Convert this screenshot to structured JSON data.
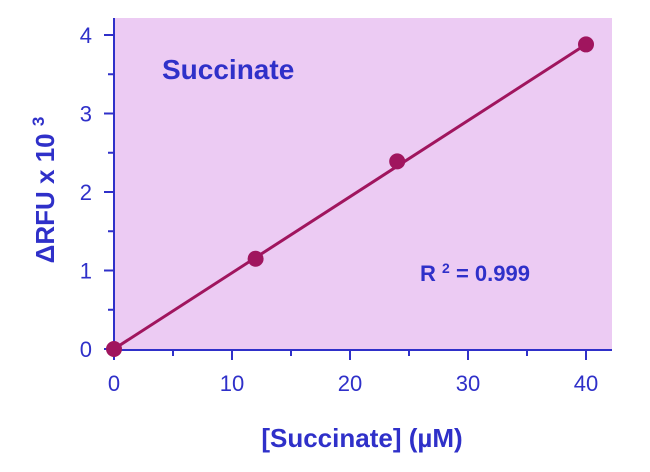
{
  "chart_data": {
    "type": "scatter",
    "title": "Succinate",
    "xlabel": "[Succinate] (µM)",
    "ylabel": "ΔRFU x 10",
    "ylabel_superscript": "3",
    "xlim": [
      0,
      40
    ],
    "ylim": [
      0,
      4
    ],
    "x_ticks": [
      0,
      10,
      20,
      30,
      40
    ],
    "y_ticks": [
      0,
      1,
      2,
      3,
      4
    ],
    "x_tick_labels": [
      "0",
      "10",
      "20",
      "30",
      "40"
    ],
    "y_tick_labels": [
      "0",
      "1",
      "2",
      "3",
      "4"
    ],
    "grid": false,
    "series": [
      {
        "x": [
          0,
          12,
          24,
          40
        ],
        "y": [
          0,
          1.15,
          2.39,
          3.88
        ],
        "fit_line": {
          "x": [
            0,
            40
          ],
          "y": [
            0,
            3.88
          ]
        }
      }
    ],
    "annotation": {
      "prefix": "R",
      "superscript": "2",
      "suffix": " = 0.999"
    }
  },
  "colors": {
    "plot_background": "#eccbf3",
    "axis": "#2f30c9",
    "text": "#2f30c9",
    "series": "#a0155e"
  }
}
